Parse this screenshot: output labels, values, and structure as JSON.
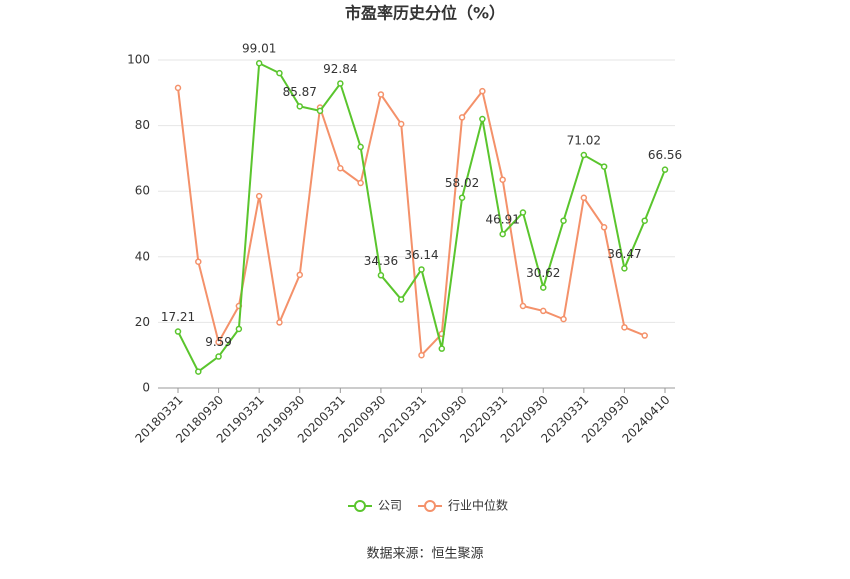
{
  "chart_data": {
    "type": "line",
    "title": "市盈率历史分位（%）",
    "source": "数据来源：恒生聚源",
    "categories": [
      "20180331",
      null,
      "20180930",
      null,
      "20190331",
      null,
      "20190930",
      null,
      "20200331",
      null,
      "20200930",
      null,
      "20210331",
      null,
      "20210930",
      null,
      "20220331",
      null,
      "20220930",
      null,
      "20230331",
      null,
      "20230930",
      null,
      "20240410"
    ],
    "series": [
      {
        "name": "公司",
        "color": "#5ac52d",
        "values": [
          17.21,
          5,
          9.59,
          18,
          99.01,
          96,
          85.87,
          84.5,
          92.84,
          73.5,
          34.36,
          27,
          36.14,
          12,
          58.02,
          82,
          46.91,
          53.5,
          30.62,
          51,
          71.02,
          67.5,
          36.47,
          51,
          66.56
        ],
        "value_labels": [
          "17.21",
          null,
          "9.59",
          null,
          "99.01",
          null,
          "85.87",
          null,
          "92.84",
          null,
          "34.36",
          null,
          "36.14",
          null,
          "58.02",
          null,
          "46.91",
          null,
          "30.62",
          null,
          "71.02",
          null,
          "36.47",
          null,
          "66.56"
        ]
      },
      {
        "name": "行业中位数",
        "color": "#f4916a",
        "values": [
          91.5,
          38.5,
          14,
          25,
          58.5,
          20,
          34.5,
          85.5,
          67,
          62.5,
          89.5,
          80.5,
          10,
          16.5,
          82.5,
          90.5,
          63.5,
          25,
          23.5,
          21,
          58,
          49,
          18.5,
          16,
          null
        ]
      }
    ],
    "ylim": [
      0,
      100
    ],
    "yticks": [
      0,
      20,
      40,
      60,
      80,
      100
    ],
    "grid": true
  }
}
